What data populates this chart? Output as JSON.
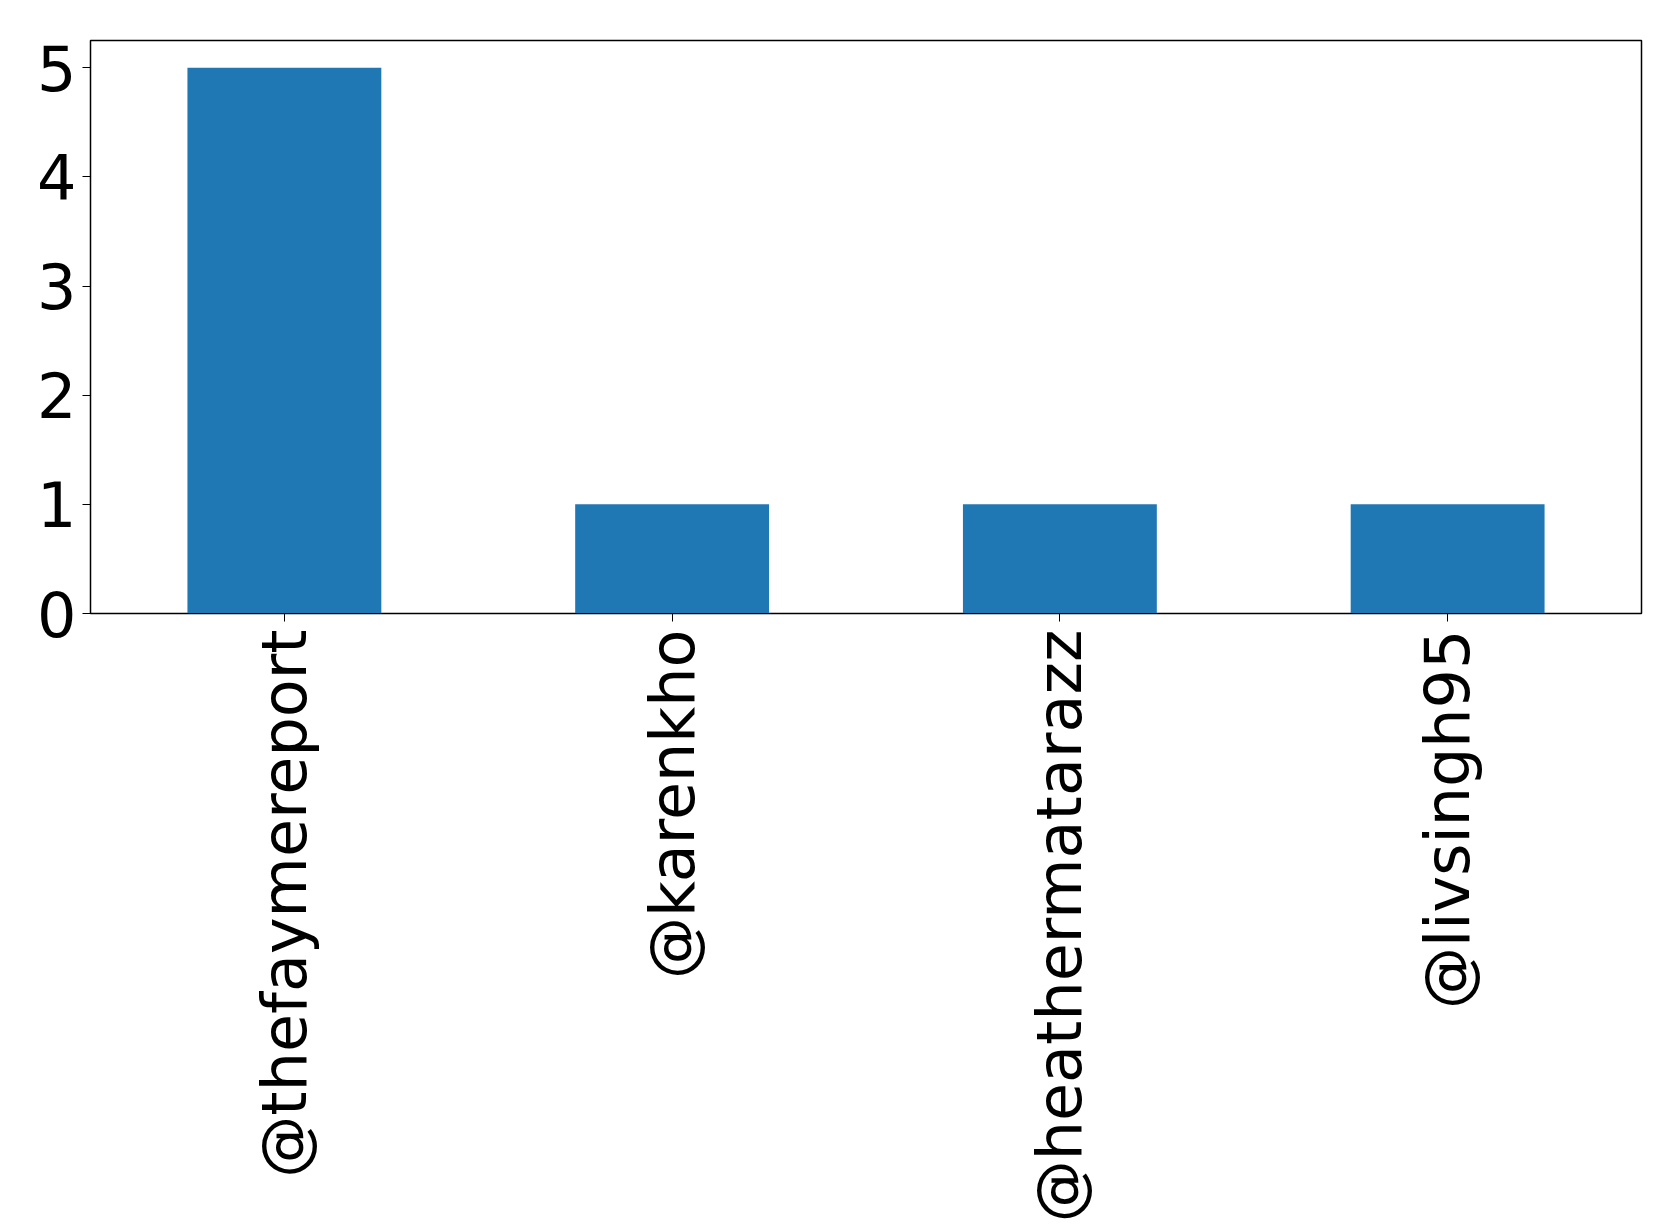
{
  "chart_data": {
    "type": "bar",
    "categories": [
      "@thefaymereport",
      "@karenkho",
      "@heathermatarazz",
      "@livsingh95"
    ],
    "values": [
      5,
      1,
      1,
      1
    ],
    "color": "#1f77b4",
    "ylim": [
      0,
      5.25
    ],
    "yticks": [
      0,
      1,
      2,
      3,
      4,
      5
    ],
    "grid": false
  }
}
